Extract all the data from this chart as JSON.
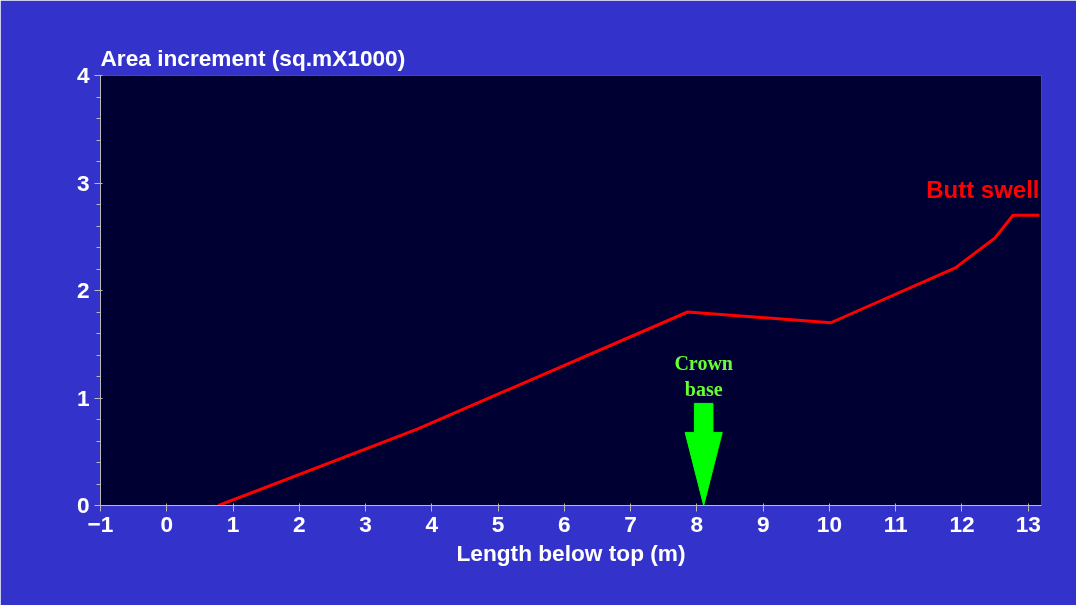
{
  "chart_data": {
    "type": "line",
    "ylabel": "Area increment (sq.mX1000)",
    "xlabel": "Length below top (m)",
    "series": [
      {
        "name": "Butt swell",
        "color": "#ff0000",
        "x": [
          0.78,
          3.78,
          7.86,
          10.02,
          11.9,
          12.5,
          12.77,
          13.17
        ],
        "values": [
          0,
          0.71,
          1.8,
          1.7,
          2.21,
          2.49,
          2.7,
          2.7
        ]
      }
    ],
    "xlim": [
      -1,
      13.2
    ],
    "ylim": [
      0,
      4
    ],
    "xticks": [
      -1,
      0,
      1,
      2,
      3,
      4,
      5,
      6,
      7,
      8,
      9,
      10,
      11,
      12,
      13
    ],
    "yticks": [
      0,
      1,
      2,
      3,
      4
    ],
    "annotations": [
      "Crown\nbase"
    ],
    "grid": false,
    "legend": false,
    "marker": "none",
    "line_style": "solid"
  }
}
